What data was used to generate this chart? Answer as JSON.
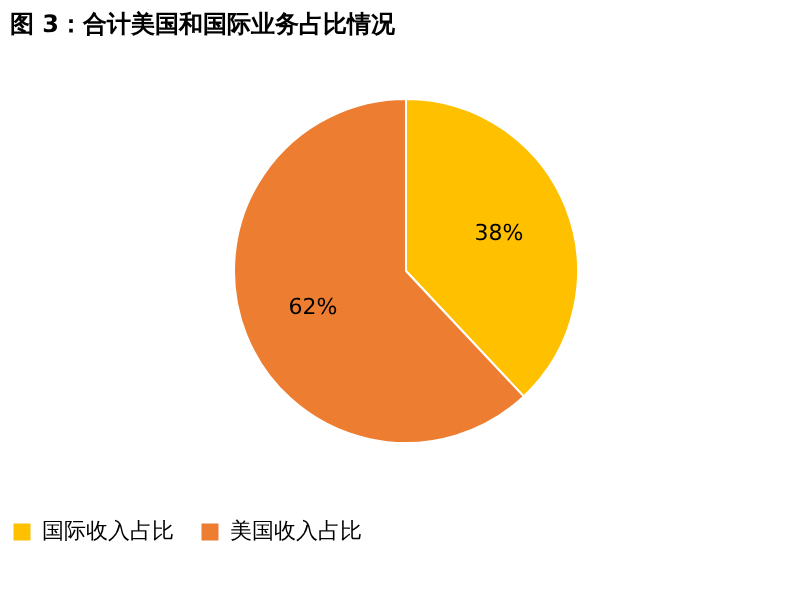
{
  "chart_data": {
    "type": "pie",
    "title": "图 3：合计美国和国际业务占比情况",
    "categories": [
      "国际收入占比",
      "美国收入占比"
    ],
    "values": [
      38,
      62
    ],
    "colors": [
      "#ffc000",
      "#ed7d31"
    ],
    "value_labels": [
      "38%",
      "62%"
    ],
    "legend": "bottom"
  }
}
